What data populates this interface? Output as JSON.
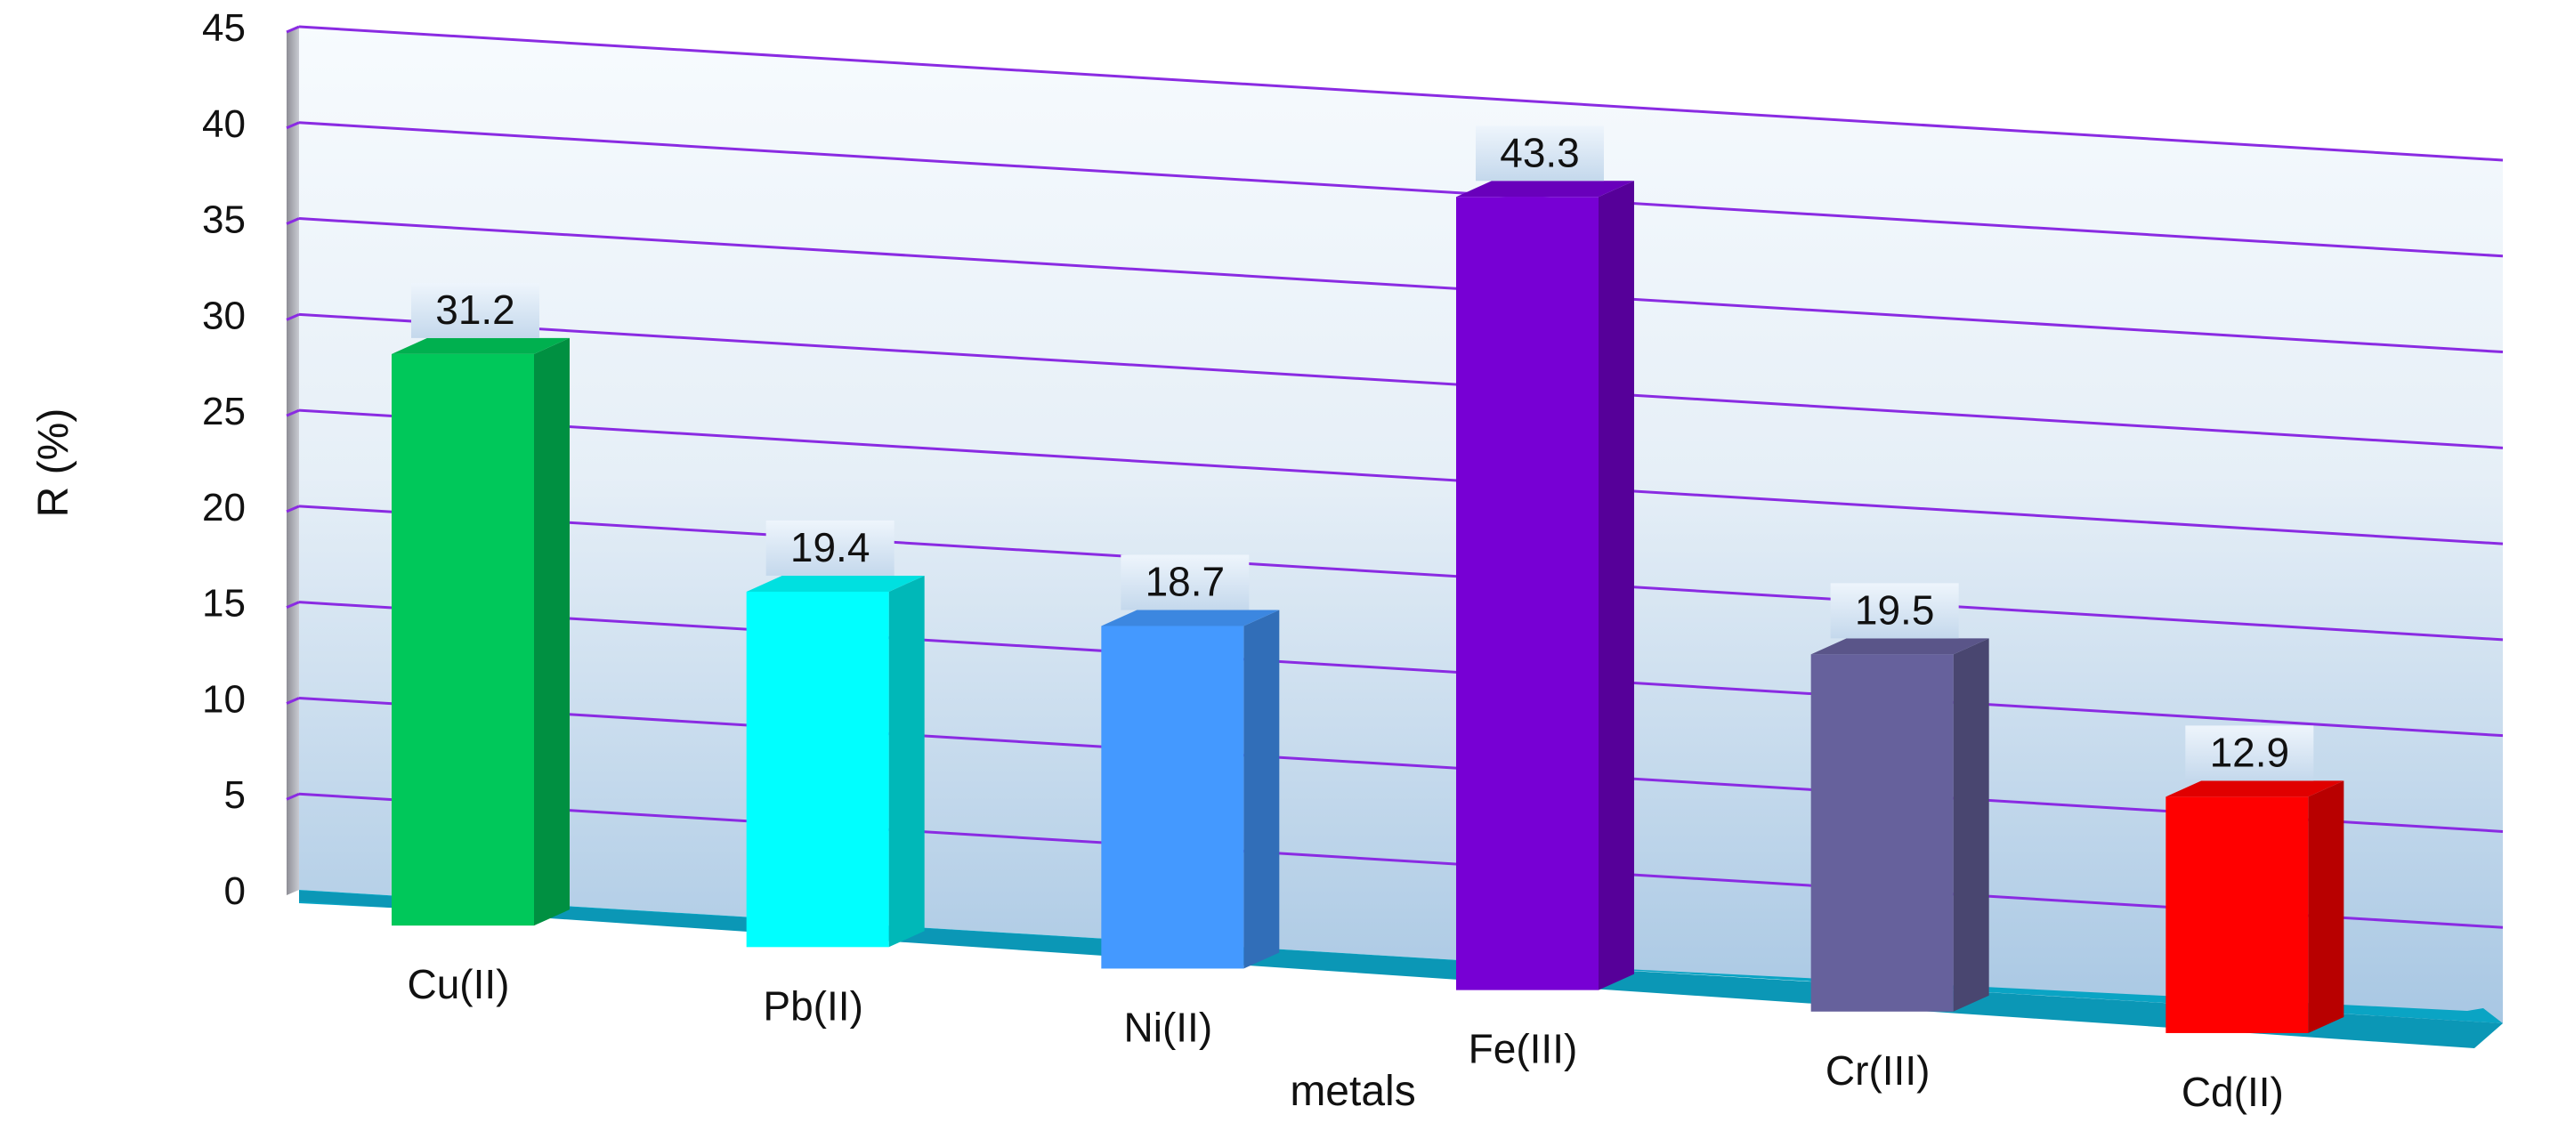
{
  "chart_data": {
    "type": "bar",
    "title": "",
    "xlabel": "metals",
    "ylabel": "R (%)",
    "ylim": [
      0,
      45
    ],
    "yticks": [
      "0",
      "5",
      "10",
      "15",
      "20",
      "25",
      "30",
      "35",
      "40",
      "45"
    ],
    "grid": true,
    "legend": "none",
    "categories": [
      "Cu(II)",
      "Pb(II)",
      "Ni(II)",
      "Fe(III)",
      "Cr(III)",
      "Cd(II)"
    ],
    "values": [
      31.2,
      19.4,
      18.7,
      43.3,
      19.5,
      12.9
    ],
    "data_labels": [
      "31.2",
      "19.4",
      "18.7",
      "43.3",
      "19.5",
      "12.9"
    ],
    "bar_colors": [
      "#00c85a",
      "#00ffff",
      "#4499ff",
      "#7700d4",
      "#66619c",
      "#ff0000"
    ],
    "gridline_color": "#8a2be2",
    "floor_color": "#0aa4c4"
  }
}
